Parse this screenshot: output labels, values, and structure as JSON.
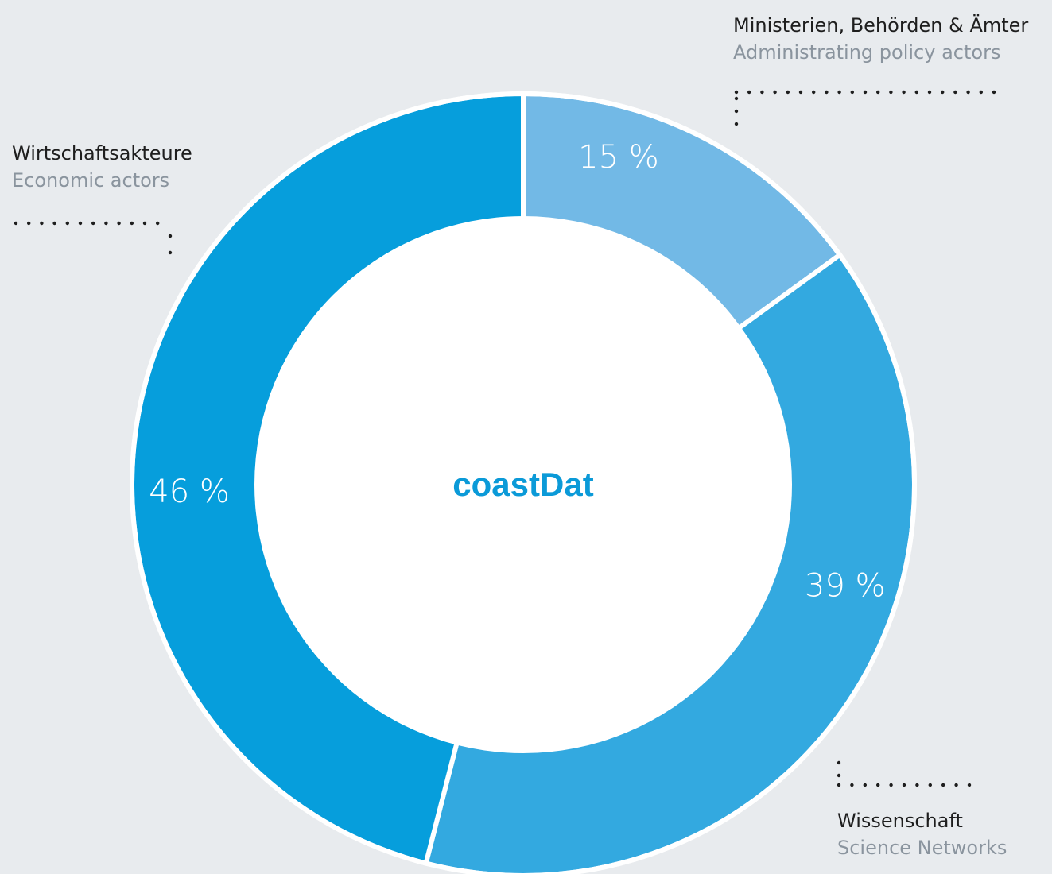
{
  "chart_data": {
    "type": "pie",
    "title": "coastDat",
    "slices": [
      {
        "label_de": "Ministerien, Behörden & Ämter",
        "label_en": "Administrating policy actors",
        "value": 15,
        "value_label": "15 %",
        "color": "#72b9e6"
      },
      {
        "label_de": "Wissenschaft",
        "label_en": "Science Networks",
        "value": 39,
        "value_label": "39 %",
        "color": "#33a9e0"
      },
      {
        "label_de": "Wirtschaftsakteure",
        "label_en": "Economic actors",
        "value": 46,
        "value_label": "46 %",
        "color": "#069edc"
      }
    ],
    "unit": "%",
    "donut": true
  },
  "colors": {
    "background": "#e8ebee",
    "center": "#ffffff",
    "separator": "#ffffff",
    "center_text": "#0b9ad8",
    "label_primary": "#1e1e1e",
    "label_secondary": "#8a949e",
    "leader_dots": "#1e1e1e"
  }
}
